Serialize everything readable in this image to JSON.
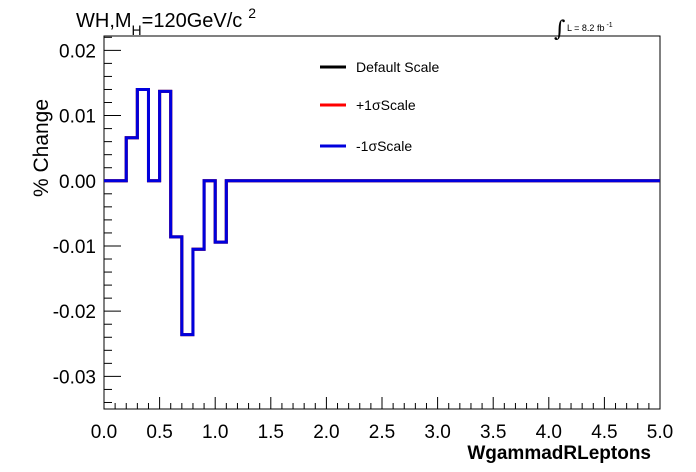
{
  "chart_data": {
    "type": "line",
    "title": {
      "prefix": "WH,M",
      "subscript": "H",
      "suffix": "=120GeV/c",
      "superscript": "2"
    },
    "lumi": {
      "text": "L = 8.2 fb",
      "superscript": "-1",
      "integral_symbol": "∫"
    },
    "xlabel": "WgammadRLeptons",
    "ylabel": "% Change",
    "xlim": [
      0.0,
      5.0
    ],
    "ylim": [
      -0.035,
      0.0222
    ],
    "x_ticks": [
      "0.0",
      "0.5",
      "1.0",
      "1.5",
      "2.0",
      "2.5",
      "3.0",
      "3.5",
      "4.0",
      "4.5",
      "5.0"
    ],
    "y_ticks": [
      "0.02",
      "0.01",
      "0.00",
      "-0.01",
      "-0.02",
      "-0.03"
    ],
    "y_tick_values": [
      0.02,
      0.01,
      0.0,
      -0.01,
      -0.02,
      -0.03
    ],
    "bin_width": 0.1,
    "bin_low_edges": [
      0.0,
      0.1,
      0.2,
      0.3,
      0.4,
      0.5,
      0.6,
      0.7,
      0.8,
      0.9,
      1.0,
      1.1,
      1.2,
      1.3,
      1.4,
      1.5,
      1.6,
      1.7,
      1.8,
      1.9,
      2.0,
      2.1,
      2.2,
      2.3,
      2.4,
      2.5,
      2.6,
      2.7,
      2.8,
      2.9,
      3.0,
      3.1,
      3.2,
      3.3,
      3.4,
      3.5,
      3.6,
      3.7,
      3.8,
      3.9,
      4.0,
      4.1,
      4.2,
      4.3,
      4.4,
      4.5,
      4.6,
      4.7,
      4.8,
      4.9
    ],
    "series": [
      {
        "name": "Default Scale",
        "color": "#000000",
        "values": [
          0,
          0,
          0.0066,
          0.014,
          0,
          0.0137,
          -0.0086,
          -0.0236,
          -0.0105,
          0,
          -0.0094,
          0,
          0,
          0,
          0,
          0,
          0,
          0,
          0,
          0,
          0,
          0,
          0,
          0,
          0,
          0,
          0,
          0,
          0,
          0,
          0,
          0,
          0,
          0,
          0,
          0,
          0,
          0,
          0,
          0,
          0,
          0,
          0,
          0,
          0,
          0,
          0,
          0,
          0,
          0
        ]
      },
      {
        "name": "+1σScale",
        "color": "#ff0000",
        "values": [
          0,
          0,
          0.0066,
          0.014,
          0,
          0.0137,
          -0.0086,
          -0.0236,
          -0.0105,
          0,
          -0.0094,
          0,
          0,
          0,
          0,
          0,
          0,
          0,
          0,
          0,
          0,
          0,
          0,
          0,
          0,
          0,
          0,
          0,
          0,
          0,
          0,
          0,
          0,
          0,
          0,
          0,
          0,
          0,
          0,
          0,
          0,
          0,
          0,
          0,
          0,
          0,
          0,
          0,
          0,
          0
        ]
      },
      {
        "name": "-1σScale",
        "color": "#0000dd",
        "values": [
          0,
          0,
          0.0066,
          0.014,
          0,
          0.0137,
          -0.0086,
          -0.0236,
          -0.0105,
          0,
          -0.0094,
          0,
          0,
          0,
          0,
          0,
          0,
          0,
          0,
          0,
          0,
          0,
          0,
          0,
          0,
          0,
          0,
          0,
          0,
          0,
          0,
          0,
          0,
          0,
          0,
          0,
          0,
          0,
          0,
          0,
          0,
          0,
          0,
          0,
          0,
          0,
          0,
          0,
          0,
          0
        ]
      }
    ],
    "legend_position": "top-center",
    "grid": false
  }
}
